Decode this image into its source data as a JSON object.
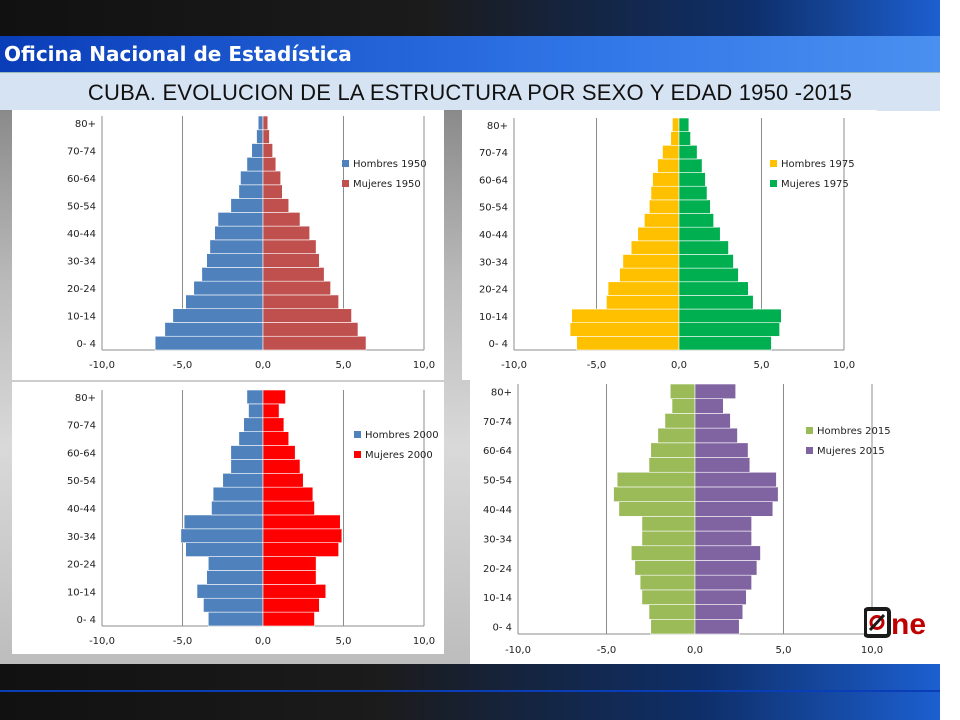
{
  "header": {
    "agency": "Oficina Nacional de Estadística",
    "title": "CUBA. EVOLUCION DE LA ESTRUCTURA POR SEXO Y EDAD 1950 -2015"
  },
  "logo": {
    "text": "ne",
    "icon": "one-logo-icon"
  },
  "axis_ticks_x": [
    "-10,0",
    "-5,0",
    "0,0",
    "5,0",
    "10,0"
  ],
  "chart_data": [
    {
      "type": "bar",
      "orientation": "horizontal-population-pyramid",
      "categories": [
        "0- 4",
        "5-9",
        "10-14",
        "15-19",
        "20-24",
        "25-29",
        "30-34",
        "35-39",
        "40-44",
        "45-49",
        "50-54",
        "55-59",
        "60-64",
        "65-69",
        "70-74",
        "75-79",
        "80+"
      ],
      "ytick_labels": [
        "0- 4",
        "10-14",
        "20-24",
        "30-34",
        "40-44",
        "50-54",
        "60-64",
        "70-74",
        "80+"
      ],
      "xlim": [
        -10,
        10
      ],
      "legend_position": "right",
      "series": [
        {
          "name": "Hombres 1950",
          "color": "#4f81bd",
          "values": [
            -6.7,
            -6.1,
            -5.6,
            -4.8,
            -4.3,
            -3.8,
            -3.5,
            -3.3,
            -3.0,
            -2.8,
            -2.0,
            -1.5,
            -1.4,
            -1.0,
            -0.7,
            -0.4,
            -0.3
          ]
        },
        {
          "name": "Mujeres 1950",
          "color": "#c0504d",
          "values": [
            6.4,
            5.9,
            5.5,
            4.7,
            4.2,
            3.8,
            3.5,
            3.3,
            2.9,
            2.3,
            1.6,
            1.2,
            1.1,
            0.8,
            0.6,
            0.4,
            0.3
          ]
        }
      ]
    },
    {
      "type": "bar",
      "orientation": "horizontal-population-pyramid",
      "categories": [
        "0- 4",
        "5-9",
        "10-14",
        "15-19",
        "20-24",
        "25-29",
        "30-34",
        "35-39",
        "40-44",
        "45-49",
        "50-54",
        "55-59",
        "60-64",
        "65-69",
        "70-74",
        "75-79",
        "80+"
      ],
      "ytick_labels": [
        "0- 4",
        "10-14",
        "20-24",
        "30-34",
        "40-44",
        "50-54",
        "60-64",
        "70-74",
        "80+"
      ],
      "xlim": [
        -10,
        10
      ],
      "legend_position": "right",
      "series": [
        {
          "name": "Hombres 1975",
          "color": "#ffc000",
          "values": [
            -6.2,
            -6.6,
            -6.5,
            -4.4,
            -4.3,
            -3.6,
            -3.4,
            -2.9,
            -2.5,
            -2.1,
            -1.8,
            -1.7,
            -1.6,
            -1.3,
            -1.0,
            -0.5,
            -0.4
          ]
        },
        {
          "name": "Mujeres 1975",
          "color": "#00b050",
          "values": [
            5.6,
            6.1,
            6.2,
            4.5,
            4.2,
            3.6,
            3.3,
            3.0,
            2.5,
            2.1,
            1.9,
            1.7,
            1.6,
            1.4,
            1.1,
            0.7,
            0.6
          ]
        }
      ]
    },
    {
      "type": "bar",
      "orientation": "horizontal-population-pyramid",
      "categories": [
        "0- 4",
        "5-9",
        "10-14",
        "15-19",
        "20-24",
        "25-29",
        "30-34",
        "35-39",
        "40-44",
        "45-49",
        "50-54",
        "55-59",
        "60-64",
        "65-69",
        "70-74",
        "75-79",
        "80+"
      ],
      "ytick_labels": [
        "0- 4",
        "10-14",
        "20-24",
        "30-34",
        "40-44",
        "50-54",
        "60-64",
        "70-74",
        "80+"
      ],
      "xlim": [
        -10,
        10
      ],
      "legend_position": "right",
      "series": [
        {
          "name": "Hombres 2000",
          "color": "#4f81bd",
          "values": [
            -3.4,
            -3.7,
            -4.1,
            -3.5,
            -3.4,
            -4.8,
            -5.1,
            -4.9,
            -3.2,
            -3.1,
            -2.5,
            -2.0,
            -2.0,
            -1.5,
            -1.2,
            -0.9,
            -1.0
          ]
        },
        {
          "name": "Mujeres 2000",
          "color": "#ff0000",
          "values": [
            3.2,
            3.5,
            3.9,
            3.3,
            3.3,
            4.7,
            4.9,
            4.8,
            3.2,
            3.1,
            2.5,
            2.3,
            2.0,
            1.6,
            1.3,
            1.0,
            1.4
          ]
        }
      ]
    },
    {
      "type": "bar",
      "orientation": "horizontal-population-pyramid",
      "categories": [
        "0- 4",
        "5-9",
        "10-14",
        "15-19",
        "20-24",
        "25-29",
        "30-34",
        "35-39",
        "40-44",
        "45-49",
        "50-54",
        "55-59",
        "60-64",
        "65-69",
        "70-74",
        "75-79",
        "80+"
      ],
      "ytick_labels": [
        "0- 4",
        "10-14",
        "20-24",
        "30-34",
        "40-44",
        "50-54",
        "60-64",
        "70-74",
        "80+"
      ],
      "xlim": [
        -10,
        10
      ],
      "legend_position": "right",
      "series": [
        {
          "name": "Hombres 2015",
          "color": "#9bbb59",
          "values": [
            -2.5,
            -2.6,
            -3.0,
            -3.1,
            -3.4,
            -3.6,
            -3.0,
            -3.0,
            -4.3,
            -4.6,
            -4.4,
            -2.6,
            -2.5,
            -2.1,
            -1.7,
            -1.3,
            -1.4
          ]
        },
        {
          "name": "Mujeres 2015",
          "color": "#8064a2",
          "values": [
            2.5,
            2.7,
            2.9,
            3.2,
            3.5,
            3.7,
            3.2,
            3.2,
            4.4,
            4.7,
            4.6,
            3.1,
            3.0,
            2.4,
            2.0,
            1.6,
            2.3
          ]
        }
      ]
    }
  ]
}
